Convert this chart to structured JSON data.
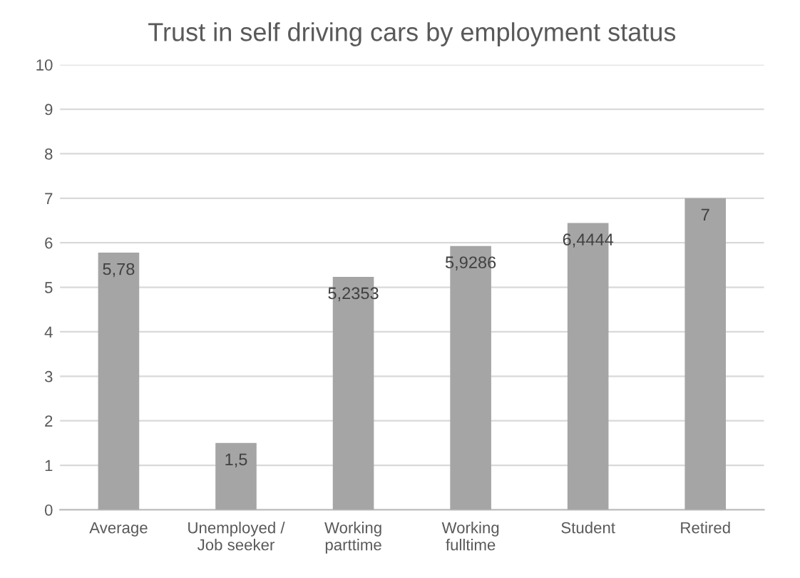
{
  "chart_data": {
    "type": "bar",
    "title": "Trust in self driving cars by employment status",
    "categories": [
      "Average",
      "Unemployed /\nJob seeker",
      "Working\nparttime",
      "Working\nfulltime",
      "Student",
      "Retired"
    ],
    "values": [
      5.78,
      1.5,
      5.2353,
      5.9286,
      6.4444,
      7
    ],
    "value_labels": [
      "5,78",
      "1,5",
      "5,2353",
      "5,9286",
      "6,4444",
      "7"
    ],
    "color": "#a5a5a5",
    "ylim": [
      0,
      10
    ],
    "yticks": [
      0,
      1,
      2,
      3,
      4,
      5,
      6,
      7,
      8,
      9,
      10
    ],
    "grid": "y"
  }
}
